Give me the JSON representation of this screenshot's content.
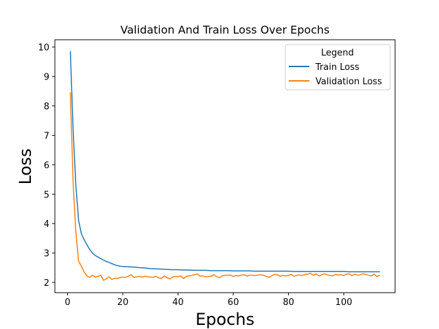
{
  "chart_data": {
    "type": "line",
    "title": "Validation And Train Loss Over Epochs",
    "xlabel": "Epochs",
    "ylabel": "Loss",
    "xlim": [
      -4.6,
      118.6
    ],
    "ylim": [
      1.65,
      10.25
    ],
    "xticks": [
      0,
      20,
      40,
      60,
      80,
      100
    ],
    "yticks": [
      2,
      3,
      4,
      5,
      6,
      7,
      8,
      9,
      10
    ],
    "grid": false,
    "legend": {
      "title": "Legend",
      "placement": "upper right"
    },
    "series": [
      {
        "name": "Train Loss",
        "color": "#1f77b4",
        "x": [
          1,
          2,
          3,
          4,
          5,
          6,
          7,
          8,
          9,
          10,
          11,
          12,
          13,
          14,
          15,
          16,
          17,
          18,
          19,
          20,
          22,
          24,
          26,
          28,
          30,
          32,
          34,
          36,
          38,
          40,
          42,
          44,
          46,
          48,
          50,
          52,
          54,
          56,
          58,
          60,
          62,
          64,
          66,
          68,
          70,
          72,
          74,
          76,
          78,
          80,
          82,
          84,
          86,
          88,
          90,
          92,
          94,
          96,
          98,
          100,
          102,
          104,
          106,
          108,
          110,
          113
        ],
        "y": [
          9.85,
          7.2,
          5.3,
          4.1,
          3.65,
          3.45,
          3.28,
          3.12,
          3.0,
          2.92,
          2.86,
          2.81,
          2.76,
          2.71,
          2.68,
          2.64,
          2.6,
          2.57,
          2.55,
          2.54,
          2.53,
          2.52,
          2.5,
          2.49,
          2.47,
          2.46,
          2.45,
          2.44,
          2.43,
          2.43,
          2.42,
          2.42,
          2.41,
          2.41,
          2.41,
          2.4,
          2.4,
          2.4,
          2.4,
          2.39,
          2.39,
          2.39,
          2.39,
          2.38,
          2.38,
          2.38,
          2.38,
          2.38,
          2.38,
          2.38,
          2.37,
          2.37,
          2.37,
          2.37,
          2.37,
          2.37,
          2.37,
          2.37,
          2.37,
          2.37,
          2.36,
          2.36,
          2.36,
          2.36,
          2.36,
          2.36
        ]
      },
      {
        "name": "Validation Loss",
        "color": "#ff7f0e",
        "x": [
          1,
          2,
          3,
          4,
          5,
          6,
          7,
          8,
          9,
          10,
          11,
          12,
          13,
          14,
          15,
          16,
          17,
          18,
          19,
          20,
          21,
          22,
          23,
          24,
          25,
          26,
          27,
          28,
          29,
          30,
          31,
          32,
          33,
          34,
          35,
          36,
          37,
          38,
          39,
          40,
          41,
          42,
          43,
          44,
          45,
          46,
          47,
          48,
          49,
          50,
          51,
          52,
          53,
          54,
          55,
          56,
          57,
          58,
          59,
          60,
          61,
          62,
          63,
          64,
          65,
          66,
          67,
          68,
          69,
          70,
          71,
          72,
          73,
          74,
          75,
          76,
          77,
          78,
          79,
          80,
          81,
          82,
          83,
          84,
          85,
          86,
          87,
          88,
          89,
          90,
          91,
          92,
          93,
          94,
          95,
          96,
          97,
          98,
          99,
          100,
          101,
          102,
          103,
          104,
          105,
          106,
          107,
          108,
          109,
          110,
          111,
          112,
          113
        ],
        "y": [
          8.45,
          5.4,
          3.7,
          2.72,
          2.55,
          2.35,
          2.22,
          2.17,
          2.24,
          2.18,
          2.2,
          2.25,
          2.07,
          2.12,
          2.19,
          2.1,
          2.14,
          2.13,
          2.16,
          2.18,
          2.17,
          2.21,
          2.26,
          2.17,
          2.19,
          2.2,
          2.18,
          2.21,
          2.19,
          2.18,
          2.17,
          2.21,
          2.15,
          2.14,
          2.22,
          2.16,
          2.12,
          2.18,
          2.2,
          2.19,
          2.22,
          2.13,
          2.2,
          2.22,
          2.24,
          2.26,
          2.29,
          2.21,
          2.22,
          2.19,
          2.2,
          2.21,
          2.26,
          2.19,
          2.16,
          2.22,
          2.24,
          2.24,
          2.25,
          2.2,
          2.23,
          2.22,
          2.25,
          2.26,
          2.21,
          2.25,
          2.24,
          2.23,
          2.25,
          2.26,
          2.24,
          2.2,
          2.17,
          2.23,
          2.27,
          2.26,
          2.21,
          2.24,
          2.22,
          2.24,
          2.27,
          2.21,
          2.24,
          2.25,
          2.24,
          2.27,
          2.28,
          2.31,
          2.24,
          2.29,
          2.22,
          2.26,
          2.29,
          2.26,
          2.24,
          2.22,
          2.27,
          2.25,
          2.26,
          2.23,
          2.28,
          2.29,
          2.23,
          2.28,
          2.24,
          2.26,
          2.29,
          2.27,
          2.24,
          2.22,
          2.28,
          2.2,
          2.24
        ]
      }
    ]
  }
}
